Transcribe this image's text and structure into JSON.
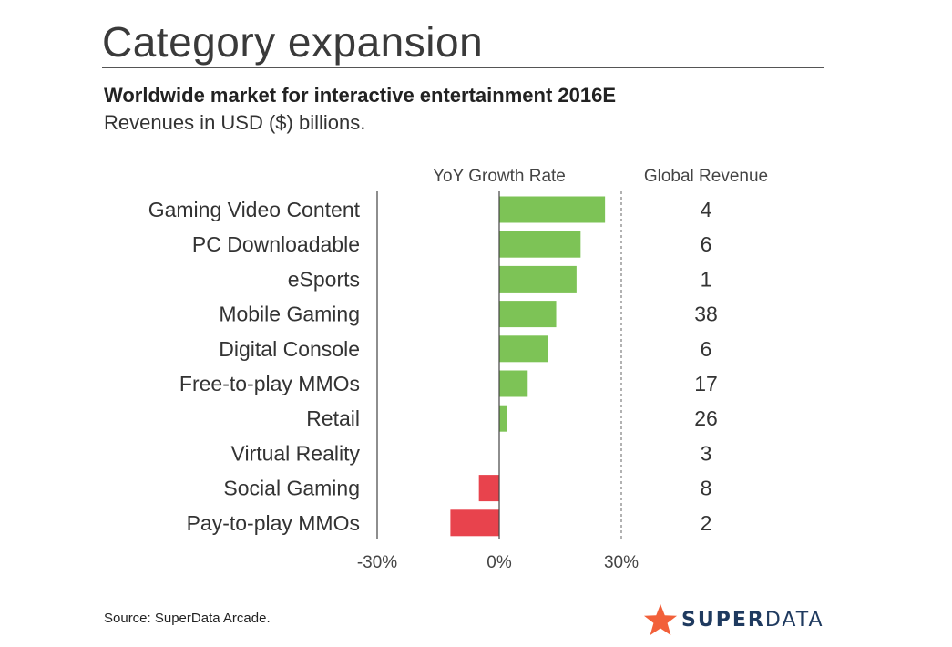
{
  "header": {
    "title": "Category expansion",
    "subtitle": "Worldwide market for interactive entertainment 2016E",
    "subsubtitle": "Revenues in USD ($) billions."
  },
  "footer": {
    "source": "Source: SuperData Arcade.",
    "logo_part1": "SUPER",
    "logo_part2": "DATA",
    "logo_icon": "star-icon"
  },
  "colors": {
    "positive": "#7dc356",
    "negative": "#e8434d",
    "logo": "#1f3a5f",
    "logo_star": "#f2603a"
  },
  "chart_data": {
    "type": "bar",
    "orientation": "horizontal",
    "column_headers": {
      "growth": "YoY Growth Rate",
      "revenue": "Global Revenue"
    },
    "categories": [
      "Gaming Video Content",
      "PC Downloadable",
      "eSports",
      "Mobile Gaming",
      "Digital Console",
      "Free-to-play MMOs",
      "Retail",
      "Virtual Reality",
      "Social Gaming",
      "Pay-to-play MMOs"
    ],
    "growth_rate_percent": [
      26,
      20,
      19,
      14,
      12,
      7,
      2,
      0,
      -5,
      -12
    ],
    "global_revenue": [
      "4",
      "6",
      "1",
      "38",
      "6",
      "17",
      "26",
      "3",
      "8",
      "2"
    ],
    "xlim": [
      -30,
      30
    ],
    "xticks": [
      "-30%",
      "0%",
      "30%"
    ],
    "grid": false
  }
}
